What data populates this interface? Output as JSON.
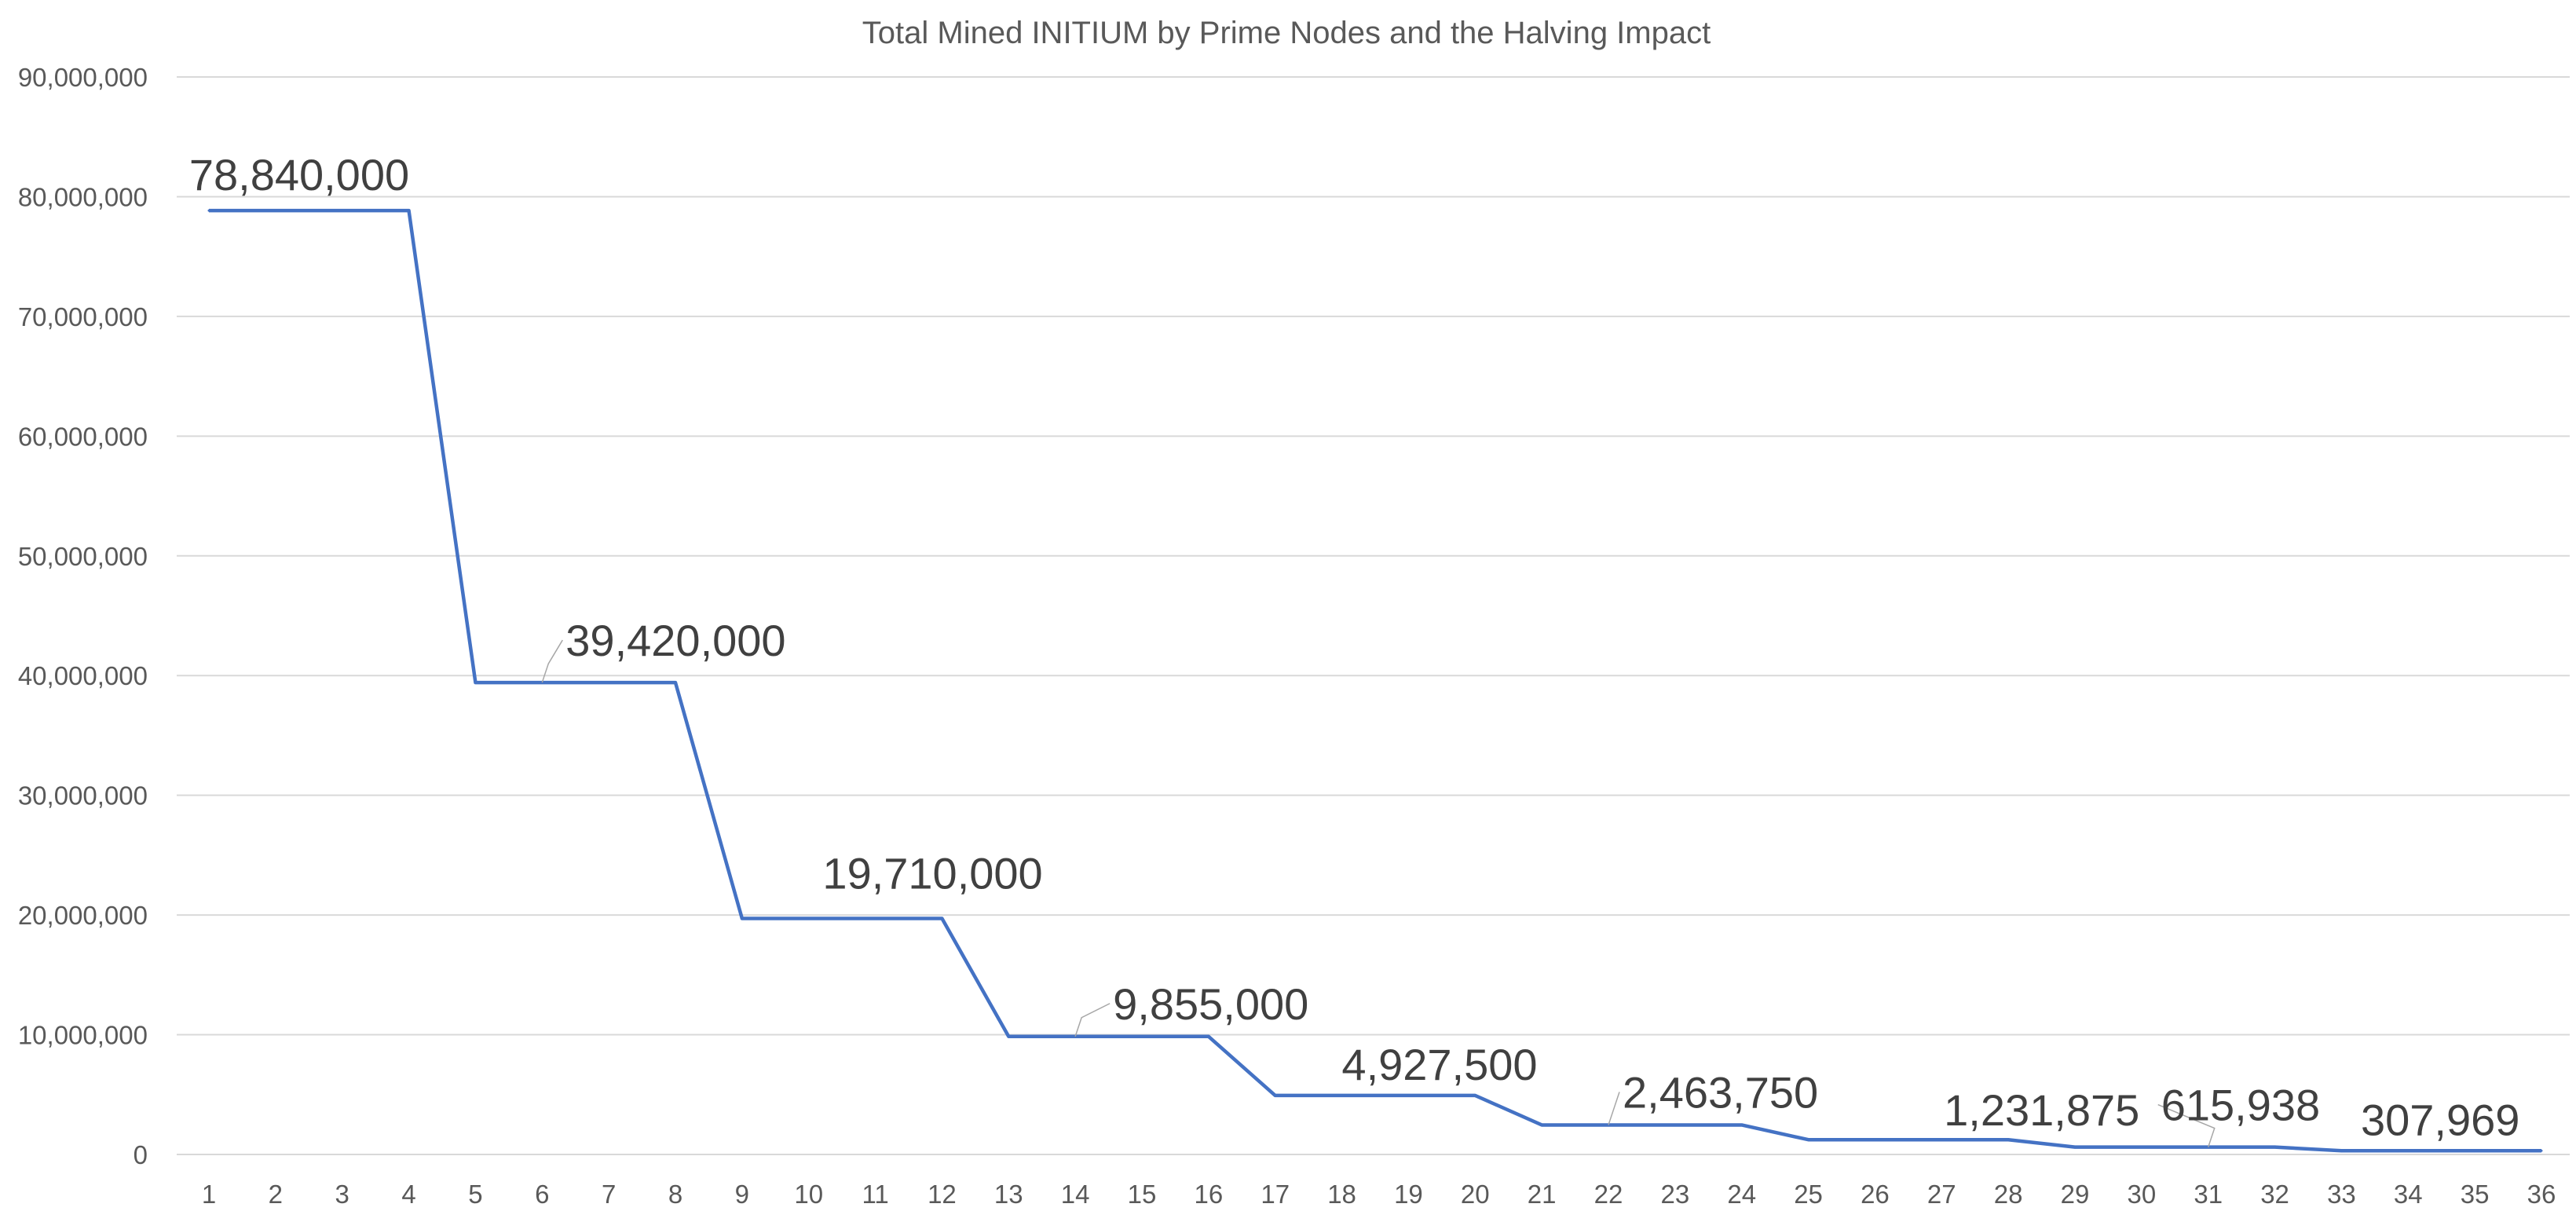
{
  "chart_data": {
    "type": "line",
    "title": "Total Mined INITIUM by Prime Nodes and the Halving Impact",
    "xlabel": "",
    "ylabel": "",
    "ylim": [
      0,
      90000000
    ],
    "grid": true,
    "legend": "none",
    "y_ticks": [
      "0",
      "10,000,000",
      "20,000,000",
      "30,000,000",
      "40,000,000",
      "50,000,000",
      "60,000,000",
      "70,000,000",
      "80,000,000",
      "90,000,000"
    ],
    "y_tick_values": [
      0,
      10000000,
      20000000,
      30000000,
      40000000,
      50000000,
      60000000,
      70000000,
      80000000,
      90000000
    ],
    "categories": [
      "1",
      "2",
      "3",
      "4",
      "5",
      "6",
      "7",
      "8",
      "9",
      "10",
      "11",
      "12",
      "13",
      "14",
      "15",
      "16",
      "17",
      "18",
      "19",
      "20",
      "21",
      "22",
      "23",
      "24",
      "25",
      "26",
      "27",
      "28",
      "29",
      "30",
      "31",
      "32",
      "33",
      "34",
      "35",
      "36"
    ],
    "series": [
      {
        "color": "#4472c4",
        "values": [
          78840000,
          78840000,
          78840000,
          78840000,
          39420000,
          39420000,
          39420000,
          39420000,
          19710000,
          19710000,
          19710000,
          19710000,
          9855000,
          9855000,
          9855000,
          9855000,
          4927500,
          4927500,
          4927500,
          4927500,
          2463750,
          2463750,
          2463750,
          2463750,
          1231875,
          1231875,
          1231875,
          1231875,
          615938,
          615938,
          615938,
          615938,
          307969,
          307969,
          307969,
          307969
        ]
      }
    ],
    "data_labels": [
      {
        "index": 1,
        "text": "78,840,000"
      },
      {
        "index": 5,
        "text": "39,420,000"
      },
      {
        "index": 11,
        "text": "19,710,000"
      },
      {
        "index": 13,
        "text": "9,855,000"
      },
      {
        "index": 18,
        "text": "4,927,500"
      },
      {
        "index": 21,
        "text": "2,463,750"
      },
      {
        "index": 27,
        "text": "1,231,875"
      },
      {
        "index": 30,
        "text": "615,938"
      },
      {
        "index": 35,
        "text": "307,969"
      }
    ]
  }
}
